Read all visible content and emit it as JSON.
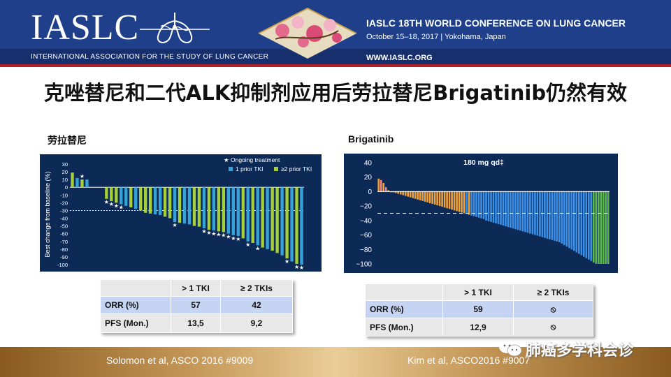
{
  "header": {
    "logo_text": "IASLC",
    "org_name": "INTERNATIONAL ASSOCIATION FOR THE STUDY OF LUNG CANCER",
    "conference_title": "IASLC 18TH WORLD CONFERENCE ON LUNG CANCER",
    "conference_date": "October 15–18, 2017 | Yokohama, Japan",
    "conference_url": "WWW.IASLC.ORG"
  },
  "title": "克唑替尼和二代ALK抑制剂应用后劳拉替尼Brigatinib仍然有效",
  "left_panel": {
    "label": "劳拉替尼",
    "table": {
      "headers": [
        "",
        "> 1 TKI",
        "≥ 2 TKIs"
      ],
      "rows": [
        [
          "ORR (%)",
          "57",
          "42"
        ],
        [
          "PFS (Mon.)",
          "13,5",
          "9,2"
        ]
      ]
    },
    "citation": "Solomon et al, ASCO 2016 #9009"
  },
  "right_panel": {
    "label": "Brigatinib",
    "table": {
      "headers": [
        "",
        "> 1 TKI",
        "≥ 2 TKIs"
      ],
      "rows": [
        [
          "ORR (%)",
          "59",
          "⦸"
        ],
        [
          "PFS (Mon.)",
          "12,9",
          "⦸"
        ]
      ]
    },
    "citation": "Kim et al, ASCO2016  #9007"
  },
  "watermark": "肺癌多学科会诊",
  "colors": {
    "header_blue": "#1f3f8a",
    "chart_bg": "#0d2a56",
    "one_prior_tki": "#35a3d8",
    "two_prior_tki": "#a6cf3a",
    "bar_blue": "#3c8fe6",
    "bar_orange": "#f0a23a",
    "bar_green": "#5cb848",
    "table_highlight": "#c5d4f2",
    "footer_gold": "#c79a5a"
  },
  "chart_data": [
    {
      "type": "bar",
      "ylabel": "Best change from baseline (%)",
      "ylim": [
        -100,
        30
      ],
      "yticks": [
        30,
        20,
        10,
        0,
        -10,
        -20,
        -30,
        -40,
        -50,
        -60,
        -70,
        -80,
        -90,
        -100
      ],
      "reference_line": -30,
      "legend": [
        "Ongoing treatment",
        "1 prior TKI",
        "≥2 prior TKI"
      ],
      "legend_position": "top-right",
      "series": [
        {
          "name": "per-patient",
          "values": [
            19,
            12,
            10,
            10,
            0,
            0,
            0,
            -15,
            -18,
            -20,
            -22,
            -24,
            -26,
            -28,
            -30,
            -33,
            -34,
            -35,
            -36,
            -38,
            -40,
            -45,
            -46,
            -47,
            -48,
            -50,
            -51,
            -53,
            -55,
            -56,
            -57,
            -58,
            -60,
            -62,
            -63,
            -66,
            -70,
            -72,
            -75,
            -78,
            -80,
            -82,
            -85,
            -88,
            -92,
            -96,
            -99,
            -100
          ],
          "group": [
            2,
            1,
            2,
            1,
            0,
            0,
            0,
            2,
            2,
            2,
            1,
            1,
            2,
            1,
            2,
            2,
            2,
            1,
            1,
            2,
            2,
            1,
            2,
            1,
            1,
            2,
            2,
            1,
            2,
            1,
            2,
            2,
            1,
            1,
            1,
            2,
            1,
            2,
            1,
            2,
            1,
            2,
            2,
            1,
            2,
            1,
            2,
            1
          ],
          "ongoing": [
            0,
            0,
            1,
            0,
            0,
            0,
            0,
            1,
            1,
            1,
            1,
            0,
            0,
            0,
            0,
            0,
            0,
            0,
            0,
            0,
            0,
            1,
            0,
            0,
            0,
            0,
            0,
            1,
            1,
            1,
            1,
            1,
            1,
            1,
            1,
            0,
            1,
            0,
            1,
            0,
            0,
            0,
            0,
            0,
            1,
            0,
            1,
            1
          ]
        }
      ]
    },
    {
      "type": "bar",
      "annotation": "180 mg qd‡",
      "ylim": [
        -100,
        40
      ],
      "yticks": [
        40,
        20,
        0,
        -20,
        -40,
        -60,
        -80,
        -100
      ],
      "reference_line": -30,
      "series": [
        {
          "name": "per-patient",
          "values": [
            18,
            16,
            12,
            6,
            2,
            0,
            -1,
            -2,
            -3,
            -4,
            -5,
            -6,
            -7,
            -8,
            -9,
            -10,
            -11,
            -12,
            -13,
            -14,
            -15,
            -16,
            -17,
            -18,
            -19,
            -20,
            -21,
            -22,
            -23,
            -24,
            -25,
            -26,
            -27,
            -28,
            -29,
            -30,
            -31,
            -32,
            -33,
            -34,
            -35,
            -36,
            -37,
            -38,
            -40,
            -41,
            -42,
            -43,
            -44,
            -45,
            -46,
            -47,
            -48,
            -49,
            -50,
            -51,
            -52,
            -53,
            -54,
            -55,
            -56,
            -57,
            -58,
            -59,
            -60,
            -61,
            -62,
            -63,
            -64,
            -65,
            -66,
            -67,
            -68,
            -69,
            -70,
            -72,
            -74,
            -76,
            -78,
            -80,
            -82,
            -84,
            -86,
            -88,
            -90,
            -92,
            -94,
            -96,
            -98,
            -100,
            -100,
            -100,
            -100,
            -100,
            -100
          ],
          "color_group": [
            "o",
            "r",
            "o",
            "r",
            "o",
            "o",
            "o",
            "o",
            "o",
            "o",
            "o",
            "o",
            "o",
            "o",
            "o",
            "o",
            "o",
            "o",
            "o",
            "o",
            "o",
            "o",
            "o",
            "o",
            "o",
            "o",
            "o",
            "o",
            "o",
            "o",
            "o",
            "o",
            "o",
            "o",
            "o",
            "o",
            "b",
            "o",
            "b",
            "b",
            "b",
            "b",
            "b",
            "b",
            "b",
            "b",
            "b",
            "b",
            "b",
            "b",
            "b",
            "b",
            "b",
            "b",
            "b",
            "b",
            "b",
            "b",
            "b",
            "b",
            "b",
            "b",
            "b",
            "b",
            "b",
            "b",
            "b",
            "b",
            "b",
            "b",
            "b",
            "b",
            "b",
            "b",
            "b",
            "b",
            "b",
            "b",
            "b",
            "b",
            "b",
            "b",
            "b",
            "b",
            "b",
            "b",
            "b",
            "b",
            "g",
            "g",
            "g",
            "g",
            "g",
            "g",
            "g"
          ]
        }
      ]
    }
  ]
}
